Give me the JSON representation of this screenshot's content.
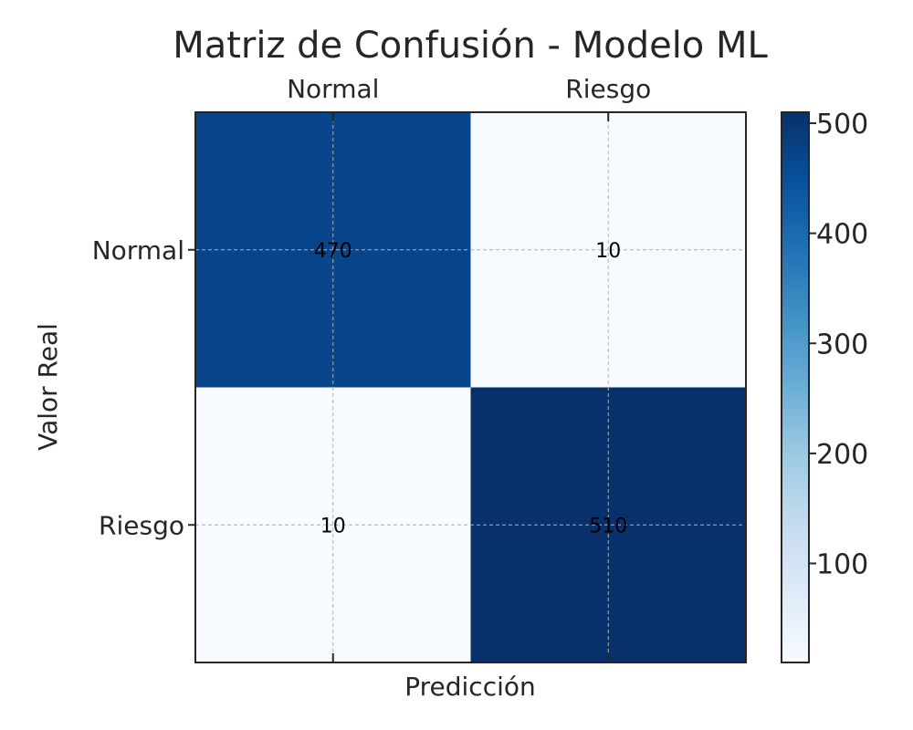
{
  "chart_data": {
    "type": "heatmap",
    "title": "Matriz de Confusión - Modelo ML",
    "xlabel": "Predicción",
    "ylabel": "Valor Real",
    "x_categories": [
      "Normal",
      "Riesgo"
    ],
    "y_categories": [
      "Normal",
      "Riesgo"
    ],
    "values": [
      [
        470,
        10
      ],
      [
        10,
        510
      ]
    ],
    "colorbar": {
      "colormap": "Blues",
      "range": [
        10,
        510
      ],
      "ticks": [
        100,
        200,
        300,
        400,
        500
      ],
      "tick_labels": [
        "100",
        "200",
        "300",
        "400",
        "500"
      ]
    },
    "grid": true,
    "x_tick_position": "top"
  }
}
